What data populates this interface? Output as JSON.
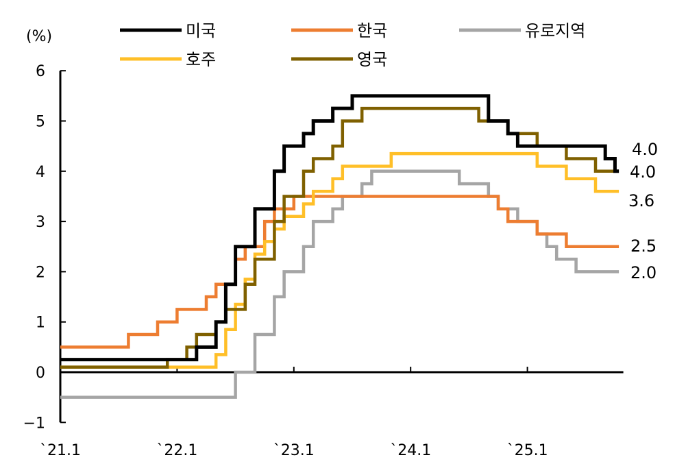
{
  "chart_data": {
    "type": "line",
    "step": true,
    "unit_label": "(%)",
    "ylim": [
      -1,
      6
    ],
    "yticks": [
      -1,
      0,
      1,
      2,
      3,
      4,
      5,
      6
    ],
    "ytick_labels": [
      "−1",
      "0",
      "1",
      "2",
      "3",
      "4",
      "5",
      "6"
    ],
    "xlim": [
      "2021-01",
      "2025-11"
    ],
    "x_end": "2025-10",
    "xticks": [
      "2021-01",
      "2022-01",
      "2023-01",
      "2024-01",
      "2025-01"
    ],
    "xtick_labels": [
      "`21.1",
      "`22.1",
      "`23.1",
      "`24.1",
      "`25.1"
    ],
    "grid": false,
    "legend_placement": "top",
    "series": [
      {
        "name": "미국",
        "color": "#000000",
        "end_label": "4.0",
        "steps": [
          [
            "2021-01",
            0.25
          ],
          [
            "2022-03",
            0.5
          ],
          [
            "2022-05",
            1.0
          ],
          [
            "2022-06",
            1.75
          ],
          [
            "2022-07",
            2.5
          ],
          [
            "2022-09",
            3.25
          ],
          [
            "2022-11",
            4.0
          ],
          [
            "2022-12",
            4.5
          ],
          [
            "2023-02",
            4.75
          ],
          [
            "2023-03",
            5.0
          ],
          [
            "2023-05",
            5.25
          ],
          [
            "2023-07",
            5.5
          ],
          [
            "2024-09",
            5.0
          ],
          [
            "2024-11",
            4.75
          ],
          [
            "2024-12",
            4.5
          ],
          [
            "2025-09",
            4.25
          ],
          [
            "2025-10",
            4.0
          ]
        ]
      },
      {
        "name": "한국",
        "color": "#ED7D31",
        "end_label": "2.5",
        "steps": [
          [
            "2021-01",
            0.5
          ],
          [
            "2021-08",
            0.75
          ],
          [
            "2021-11",
            1.0
          ],
          [
            "2022-01",
            1.25
          ],
          [
            "2022-04",
            1.5
          ],
          [
            "2022-05",
            1.75
          ],
          [
            "2022-07",
            2.25
          ],
          [
            "2022-08",
            2.5
          ],
          [
            "2022-10",
            3.0
          ],
          [
            "2022-11",
            3.25
          ],
          [
            "2023-01",
            3.5
          ],
          [
            "2024-10",
            3.25
          ],
          [
            "2024-11",
            3.0
          ],
          [
            "2025-02",
            2.75
          ],
          [
            "2025-05",
            2.5
          ]
        ]
      },
      {
        "name": "유로지역",
        "color": "#A5A5A5",
        "end_label": "2.0",
        "steps": [
          [
            "2021-01",
            -0.5
          ],
          [
            "2022-07",
            0.0
          ],
          [
            "2022-09",
            0.75
          ],
          [
            "2022-11",
            1.5
          ],
          [
            "2022-12",
            2.0
          ],
          [
            "2023-02",
            2.5
          ],
          [
            "2023-03",
            3.0
          ],
          [
            "2023-05",
            3.25
          ],
          [
            "2023-06",
            3.5
          ],
          [
            "2023-08",
            3.75
          ],
          [
            "2023-09",
            4.0
          ],
          [
            "2024-06",
            3.75
          ],
          [
            "2024-09",
            3.5
          ],
          [
            "2024-10",
            3.25
          ],
          [
            "2024-12",
            3.0
          ],
          [
            "2025-02",
            2.75
          ],
          [
            "2025-03",
            2.5
          ],
          [
            "2025-04",
            2.25
          ],
          [
            "2025-06",
            2.0
          ]
        ]
      },
      {
        "name": "호주",
        "color": "#FFBF28",
        "end_label": "3.6",
        "steps": [
          [
            "2021-01",
            0.1
          ],
          [
            "2022-05",
            0.35
          ],
          [
            "2022-06",
            0.85
          ],
          [
            "2022-07",
            1.35
          ],
          [
            "2022-08",
            1.85
          ],
          [
            "2022-09",
            2.35
          ],
          [
            "2022-10",
            2.6
          ],
          [
            "2022-11",
            2.85
          ],
          [
            "2022-12",
            3.1
          ],
          [
            "2023-02",
            3.35
          ],
          [
            "2023-03",
            3.6
          ],
          [
            "2023-05",
            3.85
          ],
          [
            "2023-06",
            4.1
          ],
          [
            "2023-11",
            4.35
          ],
          [
            "2025-02",
            4.1
          ],
          [
            "2025-05",
            3.85
          ],
          [
            "2025-08",
            3.6
          ]
        ]
      },
      {
        "name": "영국",
        "color": "#7F6000",
        "end_label": "4.0",
        "steps": [
          [
            "2021-01",
            0.1
          ],
          [
            "2021-12",
            0.25
          ],
          [
            "2022-02",
            0.5
          ],
          [
            "2022-03",
            0.75
          ],
          [
            "2022-05",
            1.0
          ],
          [
            "2022-06",
            1.25
          ],
          [
            "2022-08",
            1.75
          ],
          [
            "2022-09",
            2.25
          ],
          [
            "2022-11",
            3.0
          ],
          [
            "2022-12",
            3.5
          ],
          [
            "2023-02",
            4.0
          ],
          [
            "2023-03",
            4.25
          ],
          [
            "2023-05",
            4.5
          ],
          [
            "2023-06",
            5.0
          ],
          [
            "2023-08",
            5.25
          ],
          [
            "2024-08",
            5.0
          ],
          [
            "2024-11",
            4.75
          ],
          [
            "2025-02",
            4.5
          ],
          [
            "2025-05",
            4.25
          ],
          [
            "2025-08",
            4.0
          ]
        ]
      }
    ]
  }
}
